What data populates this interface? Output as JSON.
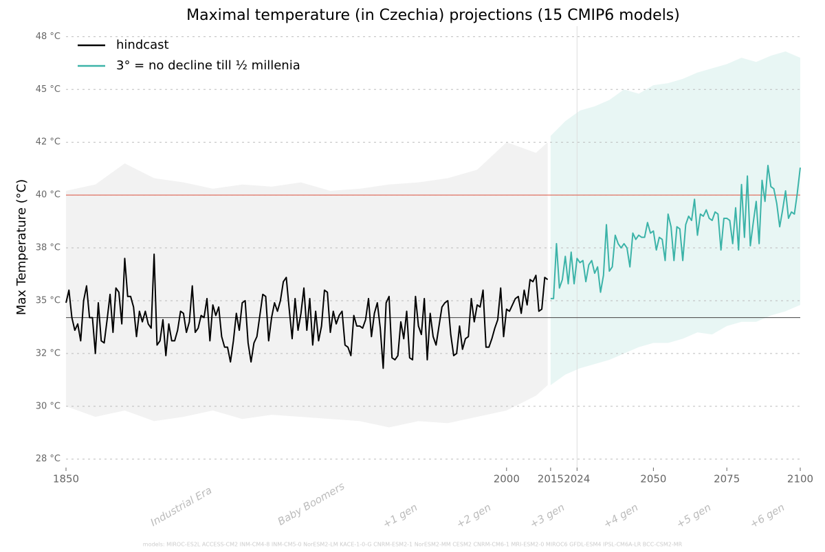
{
  "chart_data": {
    "type": "line",
    "title": "Maximal temperature (in Czechia) projections (15 CMIP6 models)",
    "ylabel": "Max Temperature (°C)",
    "footer": "models: MIROC-ES2L ACCESS-CM2 INM-CM4-8 INM-CM5-0 NorESM2-LM KACE-1-0-G CNRM-ESM2-1 NorESM2-MM CESM2 CNRM-CM6-1 MRI-ESM2-0 MIROC6 GFDL-ESM4 IPSL-CM6A-LR BCC-CSM2-MR",
    "xlim": [
      1850,
      2100
    ],
    "ylim": [
      27.1,
      48
    ],
    "xticks": [
      1850,
      2000,
      2015,
      2024,
      2050,
      2075,
      2100
    ],
    "yticks": [
      {
        "value": 27.5,
        "label": "28 °C"
      },
      {
        "value": 30,
        "label": "30 °C"
      },
      {
        "value": 32.5,
        "label": "32 °C"
      },
      {
        "value": 35,
        "label": "35 °C"
      },
      {
        "value": 37.5,
        "label": "38 °C"
      },
      {
        "value": 40,
        "label": "40 °C"
      },
      {
        "value": 42.5,
        "label": "42 °C"
      },
      {
        "value": 45,
        "label": "45 °C"
      },
      {
        "value": 47.5,
        "label": "48 °C"
      }
    ],
    "grid": true,
    "legend": "upper left",
    "eras": [
      "Industrial Era",
      "Baby Boomers",
      "+1 gen",
      "+2 gen",
      "+3 gen",
      "+4 gen",
      "+5 gen",
      "+6 gen"
    ],
    "hlines": [
      {
        "value": 40,
        "color": "#e07060"
      },
      {
        "value": 34.2,
        "color": "#555555"
      }
    ],
    "vline": 2024,
    "bands": [
      {
        "color": "#f2f2f2",
        "x": [
          1850,
          1860,
          1870,
          1880,
          1890,
          1900,
          1910,
          1920,
          1930,
          1940,
          1950,
          1960,
          1970,
          1980,
          1990,
          2000,
          2010,
          2014
        ],
        "upper": [
          40.2,
          40.5,
          41.5,
          40.8,
          40.6,
          40.3,
          40.5,
          40.4,
          40.6,
          40.2,
          40.3,
          40.5,
          40.6,
          40.8,
          41.2,
          42.5,
          42,
          42.5
        ],
        "lower": [
          30.0,
          29.5,
          29.8,
          29.3,
          29.5,
          29.8,
          29.4,
          29.6,
          29.5,
          29.4,
          29.3,
          29.0,
          29.3,
          29.2,
          29.5,
          29.8,
          30.5,
          31.0
        ]
      },
      {
        "color": "#e8f6f4",
        "x": [
          2015,
          2020,
          2025,
          2030,
          2035,
          2040,
          2045,
          2050,
          2055,
          2060,
          2065,
          2070,
          2075,
          2080,
          2085,
          2090,
          2095,
          2100
        ],
        "upper": [
          42.8,
          43.5,
          44.0,
          44.2,
          44.5,
          45,
          44.8,
          45.2,
          45.3,
          45.5,
          45.8,
          46.0,
          46.2,
          46.5,
          46.3,
          46.6,
          46.8,
          46.5
        ],
        "lower": [
          31.0,
          31.5,
          31.8,
          32.0,
          32.2,
          32.5,
          32.8,
          33.0,
          33.0,
          33.2,
          33.5,
          33.4,
          33.8,
          34.0,
          34.0,
          34.3,
          34.5,
          34.8
        ]
      }
    ],
    "series": [
      {
        "name": "hindcast",
        "color": "#000000",
        "x": [
          1850,
          1851,
          1852,
          1853,
          1854,
          1855,
          1856,
          1857,
          1858,
          1859,
          1860,
          1861,
          1862,
          1863,
          1864,
          1865,
          1866,
          1867,
          1868,
          1869,
          1870,
          1871,
          1872,
          1873,
          1874,
          1875,
          1876,
          1877,
          1878,
          1879,
          1880,
          1881,
          1882,
          1883,
          1884,
          1885,
          1886,
          1887,
          1888,
          1889,
          1890,
          1891,
          1892,
          1893,
          1894,
          1895,
          1896,
          1897,
          1898,
          1899,
          1900,
          1901,
          1902,
          1903,
          1904,
          1905,
          1906,
          1907,
          1908,
          1909,
          1910,
          1911,
          1912,
          1913,
          1914,
          1915,
          1916,
          1917,
          1918,
          1919,
          1920,
          1921,
          1922,
          1923,
          1924,
          1925,
          1926,
          1927,
          1928,
          1929,
          1930,
          1931,
          1932,
          1933,
          1934,
          1935,
          1936,
          1937,
          1938,
          1939,
          1940,
          1941,
          1942,
          1943,
          1944,
          1945,
          1946,
          1947,
          1948,
          1949,
          1950,
          1951,
          1952,
          1953,
          1954,
          1955,
          1956,
          1957,
          1958,
          1959,
          1960,
          1961,
          1962,
          1963,
          1964,
          1965,
          1966,
          1967,
          1968,
          1969,
          1970,
          1971,
          1972,
          1973,
          1974,
          1975,
          1976,
          1977,
          1978,
          1979,
          1980,
          1981,
          1982,
          1983,
          1984,
          1985,
          1986,
          1987,
          1988,
          1989,
          1990,
          1991,
          1992,
          1993,
          1994,
          1995,
          1996,
          1997,
          1998,
          1999,
          2000,
          2001,
          2002,
          2003,
          2004,
          2005,
          2006,
          2007,
          2008,
          2009,
          2010,
          2011,
          2012,
          2013,
          2014
        ],
        "values": [
          34.9,
          35.5,
          34.2,
          33.6,
          33.9,
          33.1,
          35.0,
          35.7,
          34.2,
          34.2,
          32.5,
          34.9,
          33.1,
          33.0,
          34.1,
          35.3,
          33.5,
          35.6,
          35.4,
          33.9,
          37.0,
          35.2,
          35.2,
          34.7,
          33.3,
          34.5,
          34.0,
          34.5,
          33.9,
          33.7,
          37.2,
          32.9,
          33.1,
          34.1,
          32.4,
          33.9,
          33.1,
          33.1,
          33.6,
          34.5,
          34.4,
          33.5,
          34.0,
          35.7,
          33.5,
          33.7,
          34.3,
          34.2,
          35.1,
          33.1,
          34.8,
          34.3,
          34.7,
          33.3,
          32.8,
          32.8,
          32.1,
          33.1,
          34.4,
          33.6,
          34.9,
          35.0,
          33.0,
          32.1,
          33.0,
          33.3,
          34.3,
          35.3,
          35.2,
          33.1,
          34.2,
          34.9,
          34.5,
          35.0,
          35.9,
          36.1,
          34.6,
          33.2,
          35.1,
          33.6,
          34.4,
          35.6,
          33.6,
          35.1,
          32.9,
          34.5,
          33.1,
          33.8,
          35.5,
          35.4,
          33.5,
          34.5,
          33.9,
          34.3,
          34.5,
          32.9,
          32.8,
          32.4,
          34.3,
          33.8,
          33.8,
          33.7,
          34.1,
          35.1,
          33.3,
          34.4,
          34.9,
          33.7,
          31.8,
          34.9,
          35.2,
          32.3,
          32.2,
          32.4,
          34.0,
          33.2,
          34.5,
          32.3,
          32.2,
          35.2,
          33.8,
          33.4,
          35.1,
          32.2,
          34.4,
          33.3,
          32.9,
          33.8,
          34.7,
          34.9,
          35.0,
          33.4,
          32.4,
          32.5,
          33.8,
          32.7,
          33.2,
          33.3,
          35.1,
          34.0,
          34.8,
          34.7,
          35.5,
          32.8,
          32.8,
          33.2,
          33.7,
          34.1,
          35.6,
          33.3,
          34.6,
          34.5,
          34.8,
          35.1,
          35.2,
          34.4,
          35.5,
          34.8,
          36.0,
          35.9,
          36.2,
          34.5,
          34.6,
          36.1,
          36.0
        ]
      },
      {
        "name": "3° = no decline till ½ millenia",
        "color": "#3bb3a8",
        "x": [
          2015,
          2016,
          2017,
          2018,
          2019,
          2020,
          2021,
          2022,
          2023,
          2024,
          2025,
          2026,
          2027,
          2028,
          2029,
          2030,
          2031,
          2032,
          2033,
          2034,
          2035,
          2036,
          2037,
          2038,
          2039,
          2040,
          2041,
          2042,
          2043,
          2044,
          2045,
          2046,
          2047,
          2048,
          2049,
          2050,
          2051,
          2052,
          2053,
          2054,
          2055,
          2056,
          2057,
          2058,
          2059,
          2060,
          2061,
          2062,
          2063,
          2064,
          2065,
          2066,
          2067,
          2068,
          2069,
          2070,
          2071,
          2072,
          2073,
          2074,
          2075,
          2076,
          2077,
          2078,
          2079,
          2080,
          2081,
          2082,
          2083,
          2084,
          2085,
          2086,
          2087,
          2088,
          2089,
          2090,
          2091,
          2092,
          2093,
          2094,
          2095,
          2096,
          2097,
          2098,
          2099,
          2100
        ],
        "values": [
          35.1,
          35.1,
          37.7,
          35.6,
          36.0,
          37.1,
          35.8,
          37.3,
          35.8,
          37.0,
          36.8,
          36.9,
          35.9,
          36.7,
          36.9,
          36.3,
          36.6,
          35.4,
          36.2,
          38.6,
          36.4,
          36.6,
          38.1,
          37.7,
          37.5,
          37.7,
          37.5,
          36.6,
          38.2,
          37.9,
          38.1,
          38.0,
          38.0,
          38.7,
          38.2,
          38.3,
          37.4,
          38.0,
          37.9,
          36.9,
          39.1,
          38.5,
          36.9,
          38.5,
          38.4,
          36.9,
          38.6,
          39.0,
          38.8,
          39.8,
          38.1,
          39.1,
          39.0,
          39.3,
          38.9,
          38.8,
          39.2,
          39.1,
          37.4,
          38.9,
          38.9,
          38.8,
          37.7,
          39.4,
          37.4,
          40.5,
          38.0,
          40.9,
          37.6,
          38.7,
          39.7,
          37.7,
          40.7,
          39.7,
          41.4,
          40.4,
          40.3,
          39.6,
          38.5,
          39.3,
          40.2,
          38.9,
          39.2,
          39.1,
          40.1,
          41.3
        ]
      }
    ]
  }
}
